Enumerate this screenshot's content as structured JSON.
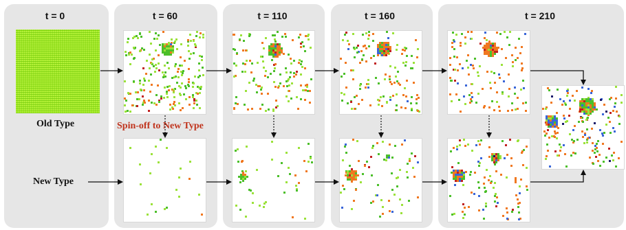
{
  "time_labels": [
    "t = 0",
    "t = 60",
    "t = 110",
    "t = 160",
    "t = 210"
  ],
  "old_type_label": "Old Type",
  "new_type_label": "New Type",
  "spin_off_label": "Spin-off to New Type",
  "colors": {
    "panel": "#e6e6e6",
    "old_type_fill": "#a6ea2a",
    "spin_off_text": "#c0341d",
    "dot_palette": [
      "#9be23a",
      "#4cbf2a",
      "#f07820",
      "#3a66d8",
      "#c02020",
      "#1a1a6a"
    ]
  }
}
